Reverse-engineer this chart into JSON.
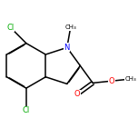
{
  "bg_color": "#ffffff",
  "bond_color": "#000000",
  "atom_colors": {
    "Cl": "#00aa00",
    "N": "#0000ff",
    "O": "#ff0000",
    "C": "#000000"
  },
  "figsize": [
    1.52,
    1.52
  ],
  "dpi": 100
}
